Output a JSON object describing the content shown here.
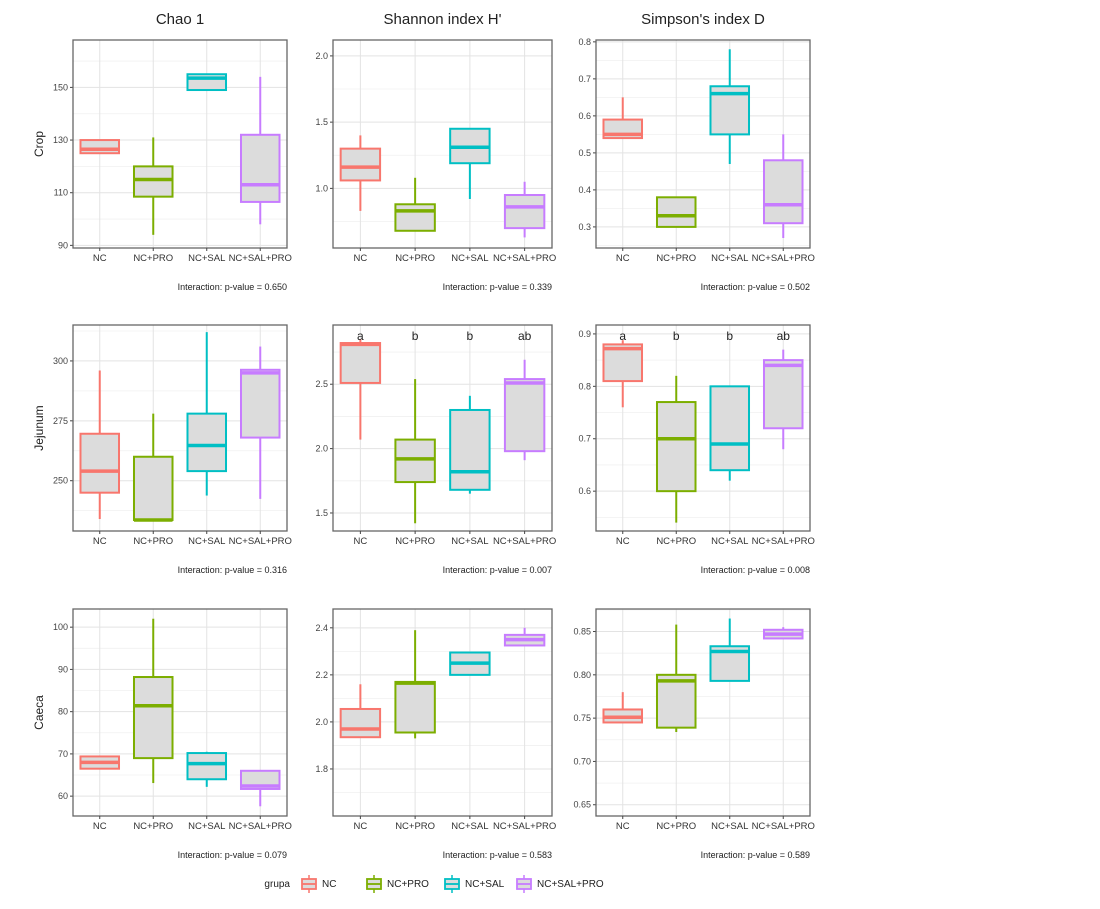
{
  "figure": {
    "column_titles": [
      "Chao 1",
      "Shannon index H'",
      "Simpson's index D"
    ],
    "row_labels": [
      "Crop",
      "Jejunum",
      "Caeca"
    ],
    "categories": [
      "NC",
      "NC+PRO",
      "NC+SAL",
      "NC+SAL+PRO"
    ],
    "colors": [
      "#F8766D",
      "#7CAE00",
      "#00BFC4",
      "#C77CFF"
    ],
    "box_fill": "#DCDCDC",
    "legend": {
      "title": "grupa",
      "labels": [
        "NC",
        "NC+PRO",
        "NC+SAL",
        "NC+SAL+PRO"
      ],
      "placement": "bottom"
    }
  },
  "chart_data": [
    {
      "type": "box",
      "row": "Crop",
      "metric": "Chao 1",
      "ylim": [
        89,
        168
      ],
      "yticks": [
        90,
        110,
        130,
        150
      ],
      "pvalue_text": "Interaction: p-value = 0.650",
      "boxes": [
        {
          "min": 125,
          "q1": 125,
          "median": 126.5,
          "q3": 130,
          "max": 130
        },
        {
          "min": 94,
          "q1": 108.5,
          "median": 115,
          "q3": 120,
          "max": 131
        },
        {
          "min": 149,
          "q1": 149,
          "median": 153.5,
          "q3": 155,
          "max": 155
        },
        {
          "min": 98,
          "q1": 106.5,
          "median": 113,
          "q3": 132,
          "max": 154
        }
      ]
    },
    {
      "type": "box",
      "row": "Crop",
      "metric": "Shannon index H'",
      "ylim": [
        0.55,
        2.12
      ],
      "yticks": [
        1.0,
        1.5,
        2.0
      ],
      "pvalue_text": "Interaction: p-value = 0.339",
      "boxes": [
        {
          "min": 0.83,
          "q1": 1.06,
          "median": 1.16,
          "q3": 1.3,
          "max": 1.4
        },
        {
          "min": 0.68,
          "q1": 0.68,
          "median": 0.83,
          "q3": 0.88,
          "max": 1.08
        },
        {
          "min": 0.92,
          "q1": 1.19,
          "median": 1.31,
          "q3": 1.45,
          "max": 1.45
        },
        {
          "min": 0.63,
          "q1": 0.7,
          "median": 0.86,
          "q3": 0.95,
          "max": 1.05
        }
      ]
    },
    {
      "type": "box",
      "row": "Crop",
      "metric": "Simpson's index D",
      "ylim": [
        0.243,
        0.805
      ],
      "yticks": [
        0.3,
        0.4,
        0.5,
        0.6,
        0.7,
        0.8
      ],
      "pvalue_text": "Interaction: p-value = 0.502",
      "boxes": [
        {
          "min": 0.54,
          "q1": 0.54,
          "median": 0.55,
          "q3": 0.59,
          "max": 0.65
        },
        {
          "min": 0.3,
          "q1": 0.3,
          "median": 0.33,
          "q3": 0.38,
          "max": 0.38
        },
        {
          "min": 0.47,
          "q1": 0.55,
          "median": 0.66,
          "q3": 0.68,
          "max": 0.78
        },
        {
          "min": 0.27,
          "q1": 0.31,
          "median": 0.36,
          "q3": 0.48,
          "max": 0.55
        }
      ]
    },
    {
      "type": "box",
      "row": "Jejunum",
      "metric": "Chao 1",
      "ylim": [
        229,
        315
      ],
      "yticks": [
        250,
        275,
        300
      ],
      "pvalue_text": "Interaction: p-value = 0.316",
      "boxes": [
        {
          "min": 234,
          "q1": 245,
          "median": 254,
          "q3": 269.6,
          "max": 296
        },
        {
          "min": 233.6,
          "q1": 233.6,
          "median": 233.6,
          "q3": 260,
          "max": 278
        },
        {
          "min": 243.8,
          "q1": 254,
          "median": 264.7,
          "q3": 278,
          "max": 312
        },
        {
          "min": 242.4,
          "q1": 268,
          "median": 295,
          "q3": 296.3,
          "max": 306
        }
      ]
    },
    {
      "type": "box",
      "row": "Jejunum",
      "metric": "Shannon index H'",
      "ylim": [
        1.36,
        2.96
      ],
      "yticks": [
        1.5,
        2.0,
        2.5
      ],
      "pvalue_text": "Interaction: p-value = 0.007",
      "letters": [
        "a",
        "b",
        "b",
        "ab"
      ],
      "boxes": [
        {
          "min": 2.07,
          "q1": 2.51,
          "median": 2.81,
          "q3": 2.82,
          "max": 2.85
        },
        {
          "min": 1.42,
          "q1": 1.74,
          "median": 1.92,
          "q3": 2.07,
          "max": 2.54
        },
        {
          "min": 1.65,
          "q1": 1.68,
          "median": 1.82,
          "q3": 2.3,
          "max": 2.41
        },
        {
          "min": 1.91,
          "q1": 1.98,
          "median": 2.51,
          "q3": 2.54,
          "max": 2.69
        }
      ]
    },
    {
      "type": "box",
      "row": "Jejunum",
      "metric": "Simpson's index D",
      "ylim": [
        0.524,
        0.917
      ],
      "yticks": [
        0.6,
        0.7,
        0.8,
        0.9
      ],
      "pvalue_text": "Interaction: p-value = 0.008",
      "letters": [
        "a",
        "b",
        "b",
        "ab"
      ],
      "boxes": [
        {
          "min": 0.76,
          "q1": 0.81,
          "median": 0.872,
          "q3": 0.88,
          "max": 0.888
        },
        {
          "min": 0.54,
          "q1": 0.6,
          "median": 0.7,
          "q3": 0.77,
          "max": 0.82
        },
        {
          "min": 0.62,
          "q1": 0.64,
          "median": 0.69,
          "q3": 0.8,
          "max": 0.8
        },
        {
          "min": 0.68,
          "q1": 0.72,
          "median": 0.84,
          "q3": 0.85,
          "max": 0.87
        }
      ]
    },
    {
      "type": "box",
      "row": "Caeca",
      "metric": "Chao 1",
      "ylim": [
        55.3,
        104.3
      ],
      "yticks": [
        60,
        70,
        80,
        90,
        100
      ],
      "pvalue_text": "Interaction: p-value = 0.079",
      "boxes": [
        {
          "min": 66.5,
          "q1": 66.5,
          "median": 68,
          "q3": 69.4,
          "max": 69.4
        },
        {
          "min": 63.1,
          "q1": 69,
          "median": 81.4,
          "q3": 88.2,
          "max": 102
        },
        {
          "min": 62.2,
          "q1": 64,
          "median": 67.7,
          "q3": 70.2,
          "max": 70.5
        },
        {
          "min": 57.6,
          "q1": 61.7,
          "median": 62.4,
          "q3": 66,
          "max": 66
        }
      ]
    },
    {
      "type": "box",
      "row": "Caeca",
      "metric": "Shannon index H'",
      "ylim": [
        1.6,
        2.48
      ],
      "yticks": [
        1.8,
        2.0,
        2.2,
        2.4
      ],
      "pvalue_text": "Interaction: p-value = 0.583",
      "boxes": [
        {
          "min": 1.935,
          "q1": 1.935,
          "median": 1.97,
          "q3": 2.055,
          "max": 2.16
        },
        {
          "min": 1.93,
          "q1": 1.955,
          "median": 2.165,
          "q3": 2.17,
          "max": 2.39
        },
        {
          "min": 2.2,
          "q1": 2.2,
          "median": 2.25,
          "q3": 2.295,
          "max": 2.295
        },
        {
          "min": 2.325,
          "q1": 2.325,
          "median": 2.35,
          "q3": 2.37,
          "max": 2.4
        }
      ]
    },
    {
      "type": "box",
      "row": "Caeca",
      "metric": "Simpson's index D",
      "ylim": [
        0.637,
        0.876
      ],
      "yticks": [
        0.65,
        0.7,
        0.75,
        0.8,
        0.85
      ],
      "pvalue_text": "Interaction: p-value = 0.589",
      "boxes": [
        {
          "min": 0.745,
          "q1": 0.745,
          "median": 0.751,
          "q3": 0.76,
          "max": 0.78
        },
        {
          "min": 0.734,
          "q1": 0.739,
          "median": 0.793,
          "q3": 0.8,
          "max": 0.858
        },
        {
          "min": 0.793,
          "q1": 0.793,
          "median": 0.827,
          "q3": 0.833,
          "max": 0.865
        },
        {
          "min": 0.842,
          "q1": 0.842,
          "median": 0.847,
          "q3": 0.852,
          "max": 0.855
        }
      ]
    }
  ]
}
